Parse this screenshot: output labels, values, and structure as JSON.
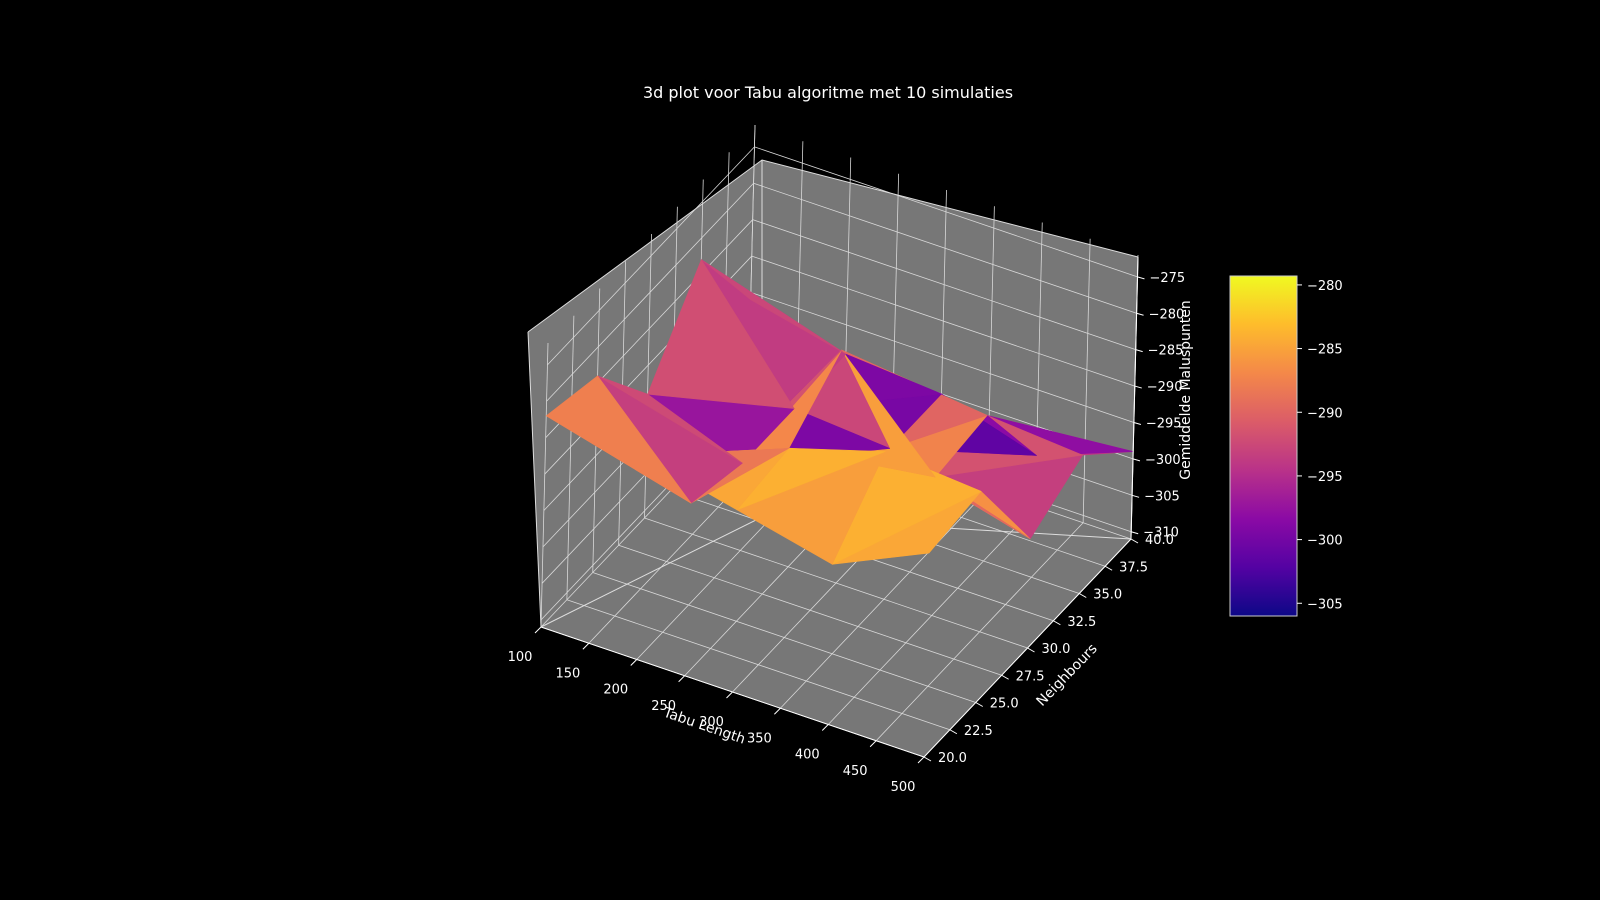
{
  "chart_data": {
    "type": "surface3d",
    "title": "3d plot voor Tabu algoritme met 10 simulaties",
    "xlabel": "Tabu Length",
    "ylabel": "Neighbours",
    "zlabel": "Gemiddelde Maluspunten",
    "xticks": [
      "100",
      "150",
      "200",
      "250",
      "300",
      "350",
      "400",
      "450",
      "500"
    ],
    "yticks": [
      "20.0",
      "22.5",
      "25.0",
      "27.5",
      "30.0",
      "32.5",
      "35.0",
      "37.5",
      "40.0"
    ],
    "zticks": [
      "−310",
      "−305",
      "−300",
      "−295",
      "−290",
      "−285",
      "−280",
      "−275"
    ],
    "colorbar_ticks": [
      "−305",
      "−300",
      "−295",
      "−290",
      "−285",
      "−280"
    ],
    "colormap": "plasma",
    "colorbar_range": [
      -306,
      -279.3
    ],
    "grid": true,
    "background": "#000000",
    "pane_color": "#777777",
    "x": [
      100,
      200,
      300,
      400,
      500
    ],
    "y": [
      20,
      25,
      30,
      35,
      40
    ],
    "z": [
      [
        -282,
        -283,
        -286,
        -289,
        -283
      ],
      [
        -284,
        -297,
        -285,
        -281,
        -282
      ],
      [
        -294,
        -299,
        -279,
        -292,
        -296
      ],
      [
        -283,
        -299,
        -300,
        -291,
        -292
      ],
      [
        -296,
        -299,
        -300,
        -304,
        -299
      ]
    ]
  }
}
